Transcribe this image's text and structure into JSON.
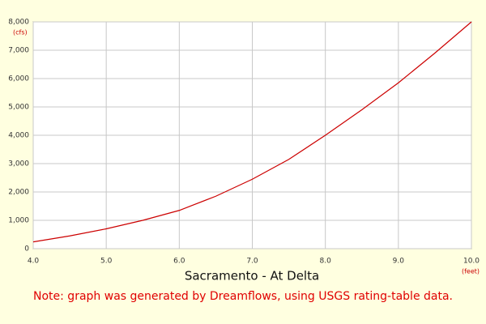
{
  "chart_data": {
    "type": "line",
    "title": "Sacramento - At Delta",
    "note": "Note: graph was generated by Dreamflows, using USGS rating-table data.",
    "x_unit": "(feet)",
    "y_unit": "(cfs)",
    "x": [
      4.0,
      4.5,
      5.0,
      5.5,
      6.0,
      6.5,
      7.0,
      7.5,
      8.0,
      8.5,
      9.0,
      9.5,
      10.0
    ],
    "series": [
      {
        "color": "#cc0000",
        "values": [
          240,
          450,
          700,
          1000,
          1350,
          1850,
          2450,
          3150,
          4000,
          4900,
          5850,
          6900,
          8000
        ]
      }
    ],
    "xlim": [
      4,
      10
    ],
    "xticks": [
      {
        "value": 4,
        "label": "4.0"
      },
      {
        "value": 5,
        "label": "5.0"
      },
      {
        "value": 6,
        "label": "6.0"
      },
      {
        "value": 7,
        "label": "7.0"
      },
      {
        "value": 8,
        "label": "8.0"
      },
      {
        "value": 9,
        "label": "9.0"
      },
      {
        "value": 10,
        "label": "10.0"
      }
    ],
    "ylim": [
      0,
      8000
    ],
    "yticks": [
      0,
      {
        "value": 1000,
        "label": "1,000"
      },
      {
        "value": 2000,
        "label": "2,000"
      },
      {
        "value": 3000,
        "label": "3,000"
      },
      {
        "value": 4000,
        "label": "4,000"
      },
      {
        "value": 5000,
        "label": "5,000"
      },
      {
        "value": 6000,
        "label": "6,000"
      },
      {
        "value": 7000,
        "label": "7,000"
      },
      {
        "value": 8000,
        "label": "8,000"
      }
    ],
    "grid": true
  }
}
